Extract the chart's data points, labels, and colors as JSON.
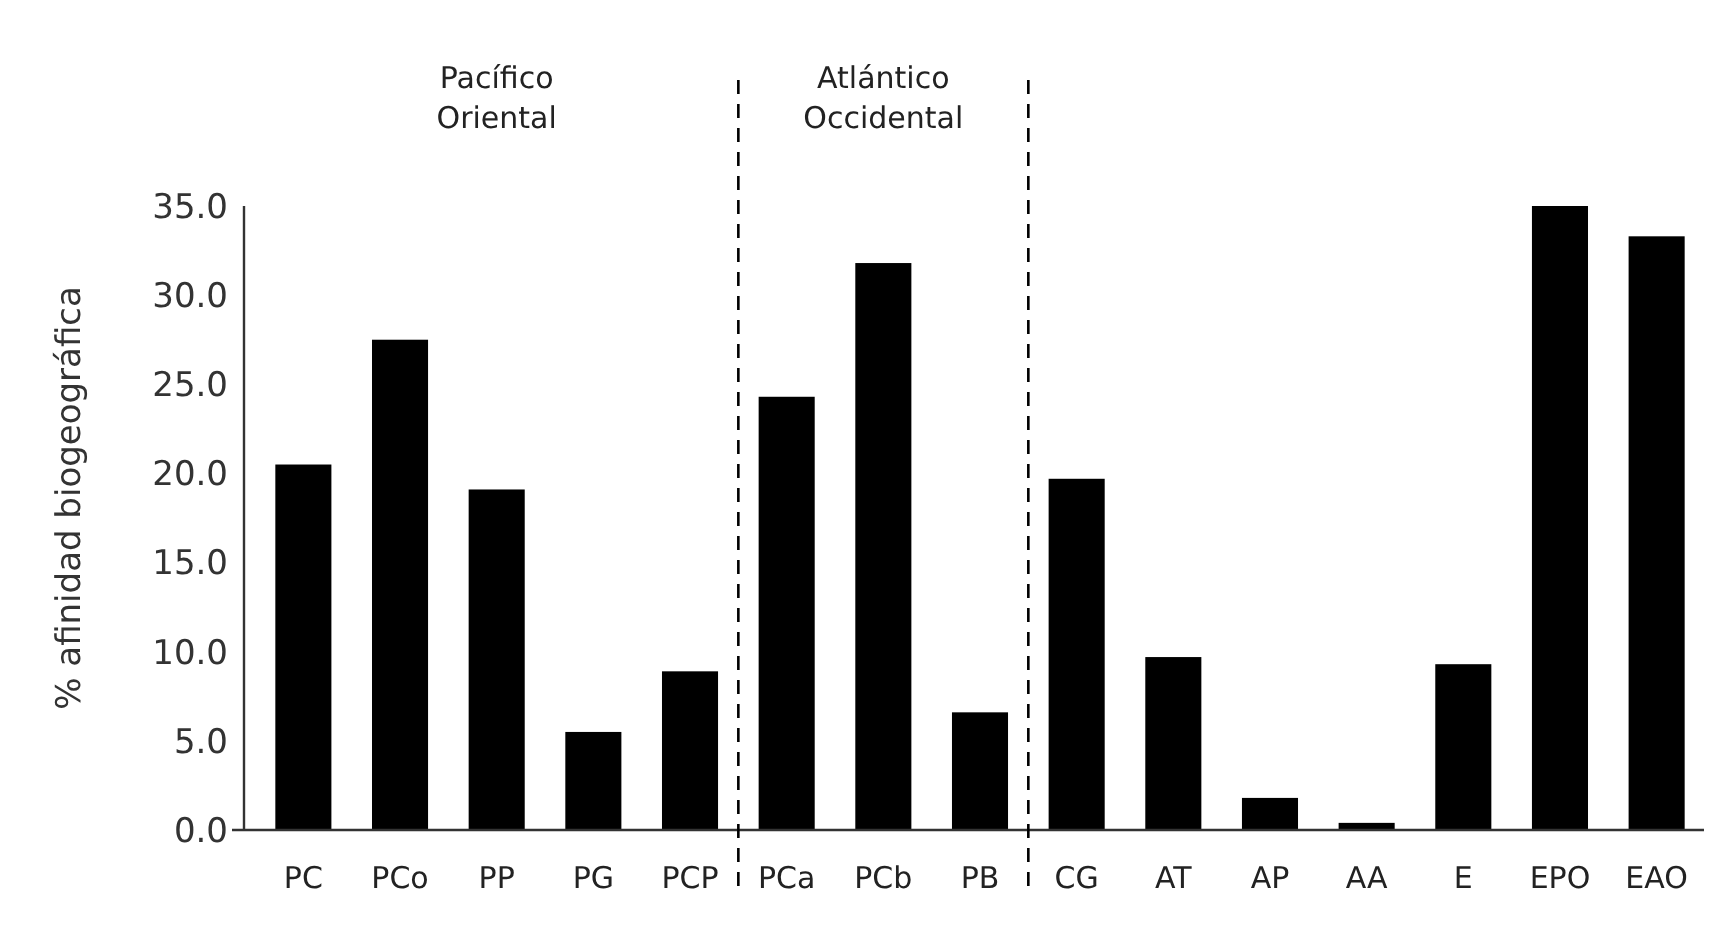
{
  "chart_data": {
    "type": "bar",
    "ylabel": "% afinidad biogeográfica",
    "categories": [
      "PC",
      "PCo",
      "PP",
      "PG",
      "PCP",
      "PCa",
      "PCb",
      "PB",
      "CG",
      "AT",
      "AP",
      "AA",
      "E",
      "EPO",
      "EAO"
    ],
    "values": [
      20.5,
      27.5,
      19.1,
      5.5,
      8.9,
      24.3,
      31.8,
      6.6,
      19.7,
      9.7,
      1.8,
      0.4,
      9.3,
      35.0,
      33.3
    ],
    "color": "#000000",
    "ylim": [
      0,
      35
    ],
    "yticks": [
      {
        "value": 0,
        "label": "0.0"
      },
      {
        "value": 5,
        "label": "5.0"
      },
      {
        "value": 10,
        "label": "10.0"
      },
      {
        "value": 15,
        "label": "15.0"
      },
      {
        "value": 20,
        "label": "20.0"
      },
      {
        "value": 25,
        "label": "25.0"
      },
      {
        "value": 30,
        "label": "30.0"
      },
      {
        "value": 35,
        "label": "35.0"
      }
    ],
    "annotations": [
      "Pacífico\nOriental",
      "Atlántico\nOccidental"
    ],
    "grid": false
  }
}
